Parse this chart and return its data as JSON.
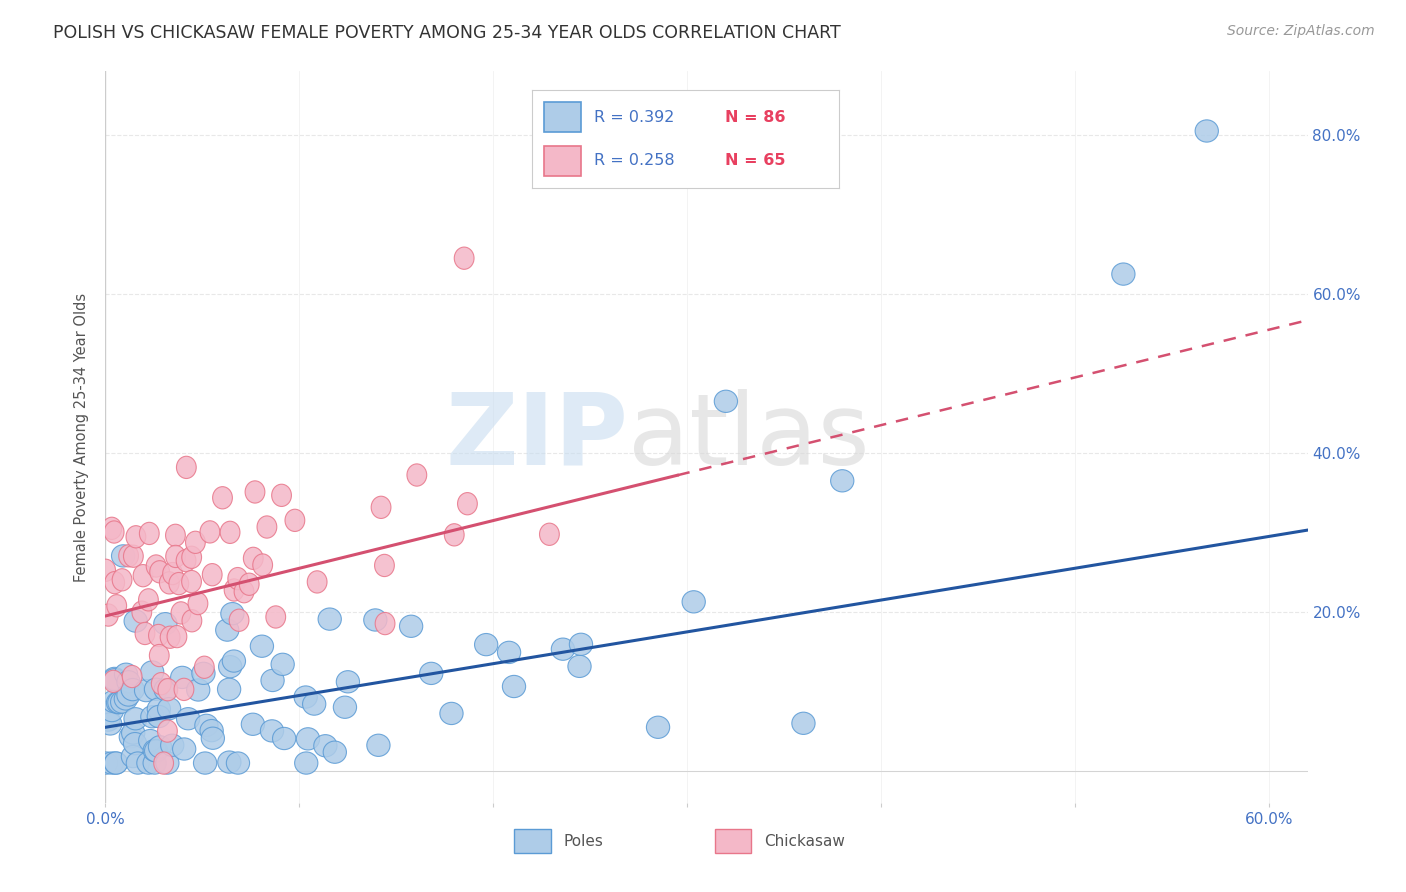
{
  "title": "POLISH VS CHICKASAW FEMALE POVERTY AMONG 25-34 YEAR OLDS CORRELATION CHART",
  "source": "Source: ZipAtlas.com",
  "ylabel": "Female Poverty Among 25-34 Year Olds",
  "xlim": [
    0.0,
    0.62
  ],
  "ylim": [
    -0.04,
    0.88
  ],
  "xticks": [
    0.0,
    0.1,
    0.2,
    0.3,
    0.4,
    0.5,
    0.6
  ],
  "xtick_labels": [
    "0.0%",
    "",
    "",
    "",
    "",
    "",
    "60.0%"
  ],
  "yticks": [
    0.0,
    0.2,
    0.4,
    0.6,
    0.8
  ],
  "ytick_labels": [
    "",
    "20.0%",
    "40.0%",
    "60.0%",
    "80.0%"
  ],
  "poles_R": 0.392,
  "poles_N": 86,
  "chickasaw_R": 0.258,
  "chickasaw_N": 65,
  "poles_color": "#aecce8",
  "poles_edge_color": "#5b9bd5",
  "chickasaw_color": "#f4b8c8",
  "chickasaw_edge_color": "#e8768a",
  "poles_line_color": "#2255a0",
  "chickasaw_line_color": "#d45070",
  "legend_R_color": "#4472c4",
  "legend_N_color": "#e84060",
  "watermark_zip_color": "#c8ddf0",
  "watermark_atlas_color": "#d8d8d8",
  "background_color": "#ffffff",
  "grid_color": "#e8e8e8",
  "poles_trend_start_y": 0.055,
  "poles_trend_end_y": 0.295,
  "chickasaw_trend_start_y": 0.195,
  "chickasaw_trend_end_y": 0.375
}
